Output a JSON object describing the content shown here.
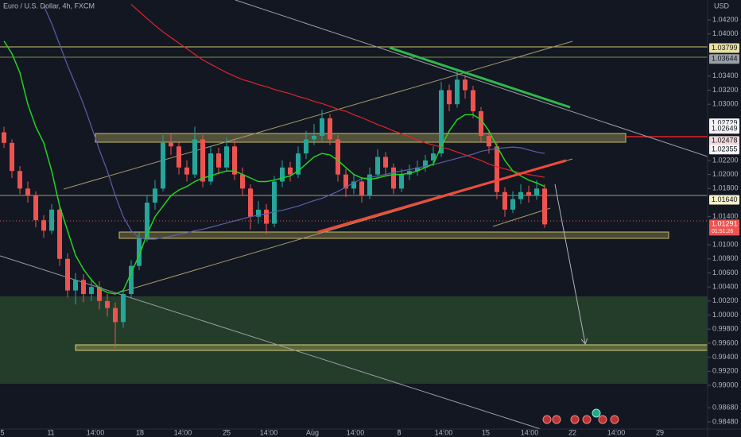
{
  "chart_data": {
    "type": "candlestick",
    "title": "Euro / U.S. Dollar, 4h, FXCM",
    "y_axis_label": "USD",
    "up_color": "#26a69a",
    "down_color": "#ef5350",
    "xlim": [
      0,
      89
    ],
    "ylim": [
      0.98378,
      1.04483
    ],
    "grid": false,
    "open": [
      1.026,
      1.0245,
      1.0205,
      1.018,
      1.017,
      1.0135,
      1.012,
      1.015,
      1.008,
      1.0035,
      1.005,
      1.003,
      1.004,
      1.002,
      1.001,
      0.999,
      1.003,
      1.007,
      1.011,
      1.016,
      1.018,
      1.0245,
      1.024,
      1.021,
      1.02,
      1.025,
      1.019,
      1.023,
      1.021,
      1.024,
      1.02,
      1.018,
      1.014,
      1.015,
      1.013,
      1.019,
      1.021,
      1.02,
      1.023,
      1.025,
      1.0255,
      1.028,
      1.025,
      1.02,
      1.018,
      1.019,
      1.017,
      1.02,
      1.0225,
      1.021,
      1.018,
      1.02,
      1.0205,
      1.021,
      1.022,
      1.023,
      1.032,
      1.03,
      1.0335,
      1.032,
      1.029,
      1.0255,
      1.024,
      1.0175,
      1.015,
      1.0165,
      1.0175,
      1.017,
      1.018
    ],
    "high": [
      1.0268,
      1.025,
      1.0212,
      1.019,
      1.0176,
      1.0142,
      1.0158,
      1.0155,
      1.0088,
      1.006,
      1.0058,
      1.0052,
      1.0048,
      1.003,
      1.0018,
      1.0036,
      1.0078,
      1.0118,
      1.017,
      1.0192,
      1.0256,
      1.0258,
      1.0248,
      1.022,
      1.0268,
      1.0256,
      1.024,
      1.0238,
      1.0252,
      1.0248,
      1.021,
      1.0186,
      1.0162,
      1.0158,
      1.0198,
      1.022,
      1.0218,
      1.024,
      1.0262,
      1.0272,
      1.0292,
      1.0286,
      1.0256,
      1.0208,
      1.02,
      1.0196,
      1.021,
      1.0236,
      1.0232,
      1.0216,
      1.0208,
      1.0214,
      1.022,
      1.0228,
      1.024,
      1.0332,
      1.0328,
      1.0349,
      1.0342,
      1.0326,
      1.0296,
      1.0262,
      1.0246,
      1.0182,
      1.0176,
      1.0186,
      1.0184,
      1.0192,
      1.0186
    ],
    "low": [
      1.0238,
      1.0195,
      1.0172,
      1.016,
      1.0125,
      1.011,
      1.0115,
      1.007,
      1.0025,
      1.0015,
      1.0018,
      1.002,
      1.0008,
      0.9998,
      0.9953,
      0.9982,
      1.0024,
      1.0064,
      1.0104,
      1.015,
      1.0176,
      1.0228,
      1.02,
      1.019,
      1.0195,
      1.0182,
      1.0185,
      1.02,
      1.0205,
      1.0192,
      1.017,
      1.0122,
      1.013,
      1.0115,
      1.0125,
      1.0182,
      1.019,
      1.0195,
      1.0222,
      1.0242,
      1.0248,
      1.0242,
      1.019,
      1.0168,
      1.0172,
      1.016,
      1.0165,
      1.0195,
      1.02,
      1.0172,
      1.0175,
      1.0192,
      1.0198,
      1.0204,
      1.0212,
      1.0225,
      1.029,
      1.0295,
      1.0308,
      1.028,
      1.0246,
      1.023,
      1.0165,
      1.014,
      1.0145,
      1.0158,
      1.016,
      1.0164,
      1.0124
    ],
    "close": [
      1.0245,
      1.0205,
      1.018,
      1.017,
      1.0135,
      1.012,
      1.015,
      1.008,
      1.0035,
      1.005,
      1.003,
      1.004,
      1.002,
      1.001,
      0.999,
      1.003,
      1.007,
      1.011,
      1.016,
      1.018,
      1.0245,
      1.024,
      1.021,
      1.02,
      1.025,
      1.019,
      1.023,
      1.021,
      1.024,
      1.02,
      1.018,
      1.014,
      1.015,
      1.013,
      1.019,
      1.021,
      1.02,
      1.023,
      1.025,
      1.0255,
      1.028,
      1.025,
      1.02,
      1.018,
      1.019,
      1.017,
      1.02,
      1.0225,
      1.021,
      1.018,
      1.02,
      1.0205,
      1.021,
      1.022,
      1.023,
      1.032,
      1.03,
      1.0335,
      1.032,
      1.029,
      1.0255,
      1.024,
      1.0175,
      1.015,
      1.0165,
      1.0175,
      1.017,
      1.018,
      1.0129
    ],
    "lines": [
      {
        "color": "#5b5fa8",
        "values": [
          null,
          null,
          null,
          null,
          null,
          1.044,
          1.0415,
          1.0385,
          1.0355,
          1.0328,
          1.03,
          1.0268,
          1.0235,
          1.0205,
          1.017,
          1.014,
          1.012,
          1.011,
          1.0108,
          1.0108,
          1.011,
          1.0112,
          1.0115,
          1.0117,
          1.012,
          1.0122,
          1.0125,
          1.0128,
          1.0131,
          1.0134,
          1.0137,
          1.014,
          1.0142,
          1.0144,
          1.0147,
          1.0149,
          1.0152,
          1.0155,
          1.0159,
          1.0163,
          1.0166,
          1.0171,
          1.0176,
          1.0182,
          1.0188,
          1.0194,
          1.0196,
          1.0198,
          1.02,
          1.0203,
          1.0205,
          1.0207,
          1.0209,
          1.0212,
          1.0214,
          1.0217,
          1.022,
          1.0223,
          1.0226,
          1.0229,
          1.0233,
          1.0235,
          1.0237,
          1.0238,
          1.0239,
          1.0238,
          1.0235,
          1.0232,
          1.023
        ]
      },
      {
        "color": "#e0242a",
        "values": [
          null,
          null,
          null,
          null,
          null,
          null,
          null,
          null,
          null,
          null,
          null,
          null,
          null,
          null,
          null,
          null,
          1.0442,
          1.0432,
          1.0422,
          1.0412,
          1.0403,
          1.0395,
          1.0387,
          1.0379,
          1.0371,
          1.0363,
          1.0357,
          1.0351,
          1.0345,
          1.034,
          1.0335,
          1.0332,
          1.0328,
          1.0325,
          1.0321,
          1.0318,
          1.0315,
          1.0311,
          1.0308,
          1.0304,
          1.0301,
          1.0297,
          1.0293,
          1.029,
          1.0285,
          1.0281,
          1.0276,
          1.0271,
          1.0267,
          1.0262,
          1.0258,
          1.0254,
          1.0249,
          1.0245,
          1.0242,
          1.0239,
          1.0236,
          1.0232,
          1.0228,
          1.0224,
          1.022,
          1.0215,
          1.0211,
          1.0208,
          1.0205,
          1.0202,
          1.02,
          1.0198,
          1.0196
        ]
      },
      {
        "color": "#22d422",
        "values": [
          1.039,
          1.0372,
          1.0345,
          1.03,
          1.0268,
          1.0245,
          1.0205,
          1.0155,
          1.012,
          1.0085,
          1.0065,
          1.005,
          1.0038,
          1.0032,
          1.003,
          1.0035,
          1.006,
          1.0085,
          1.0115,
          1.014,
          1.0155,
          1.017,
          1.0178,
          1.0183,
          1.019,
          1.0195,
          1.0198,
          1.0202,
          1.0205,
          1.0205,
          1.02,
          1.0195,
          1.019,
          1.019,
          1.0192,
          1.0195,
          1.0198,
          1.0205,
          1.0215,
          1.0225,
          1.023,
          1.0228,
          1.022,
          1.021,
          1.02,
          1.0195,
          1.0193,
          1.0195,
          1.0198,
          1.02,
          1.02,
          1.0202,
          1.0205,
          1.021,
          1.0215,
          1.024,
          1.0262,
          1.0278,
          1.0285,
          1.0285,
          1.0278,
          1.0262,
          1.024,
          1.022,
          1.0205,
          1.0198,
          1.0192,
          1.0188,
          1.0183
        ]
      }
    ],
    "yticks": [
      {
        "value": 1.042,
        "label": "1.04200"
      },
      {
        "value": 1.04,
        "label": "1.04000"
      },
      {
        "value": 1.034,
        "label": "1.03400"
      },
      {
        "value": 1.032,
        "label": "1.03200"
      },
      {
        "value": 1.03,
        "label": "1.03000"
      },
      {
        "value": 1.022,
        "label": "1.02200"
      },
      {
        "value": 1.02,
        "label": "1.02000"
      },
      {
        "value": 1.018,
        "label": "1.01800"
      },
      {
        "value": 1.014,
        "label": "1.01400"
      },
      {
        "value": 1.01,
        "label": "1.01000"
      },
      {
        "value": 1.008,
        "label": "1.00800"
      },
      {
        "value": 1.006,
        "label": "1.00600"
      },
      {
        "value": 1.004,
        "label": "1.00400"
      },
      {
        "value": 1.002,
        "label": "1.00200"
      },
      {
        "value": 1,
        "label": "1.00000"
      },
      {
        "value": 0.998,
        "label": "0.99800"
      },
      {
        "value": 0.996,
        "label": "0.99600"
      },
      {
        "value": 0.994,
        "label": "0.99400"
      },
      {
        "value": 0.992,
        "label": "0.99200"
      },
      {
        "value": 0.99,
        "label": "0.99000"
      },
      {
        "value": 0.9868,
        "label": "0.98680"
      },
      {
        "value": 0.9848,
        "label": "0.98480"
      }
    ],
    "xticks": [
      {
        "value": 0.3,
        "label": "5"
      },
      {
        "value": 6.4,
        "label": "11"
      },
      {
        "value": 12,
        "label": "14:00"
      },
      {
        "value": 17.6,
        "label": "18"
      },
      {
        "value": 23,
        "label": "14:00"
      },
      {
        "value": 28.5,
        "label": "25"
      },
      {
        "value": 33.8,
        "label": "14:00"
      },
      {
        "value": 39.3,
        "label": "Aug"
      },
      {
        "value": 44.7,
        "label": "14:00"
      },
      {
        "value": 50.2,
        "label": "8"
      },
      {
        "value": 55.8,
        "label": "14:00"
      },
      {
        "value": 61.1,
        "label": "15"
      },
      {
        "value": 66.6,
        "label": "14:00"
      },
      {
        "value": 72,
        "label": "22"
      },
      {
        "value": 77.5,
        "label": "14:00"
      },
      {
        "value": 83,
        "label": "29"
      }
    ],
    "price_labels": [
      {
        "value": 1.03799,
        "color": "#e8e0a0",
        "text_color": "#131722"
      },
      {
        "value": 1.03644,
        "color": "#9aa0a6",
        "text_color": "#131722"
      },
      {
        "value": 1.02729,
        "color": "#f5f5f5",
        "text_color": "#131722"
      },
      {
        "value": 1.02649,
        "color": "#f5f5f5",
        "text_color": "#131722"
      },
      {
        "value": 1.02478,
        "color": "#f3d9d9",
        "text_color": "#131722"
      },
      {
        "value": 1.02355,
        "color": "#f5f5f5",
        "text_color": "#131722"
      },
      {
        "value": 1.0164,
        "label": "1.01640",
        "color": "#f5f1c8",
        "text_color": "#131722"
      },
      {
        "value": 1.01291,
        "color": "#ef5350",
        "text_color": "#ffffff",
        "countdown": "01:51:26"
      }
    ]
  }
}
